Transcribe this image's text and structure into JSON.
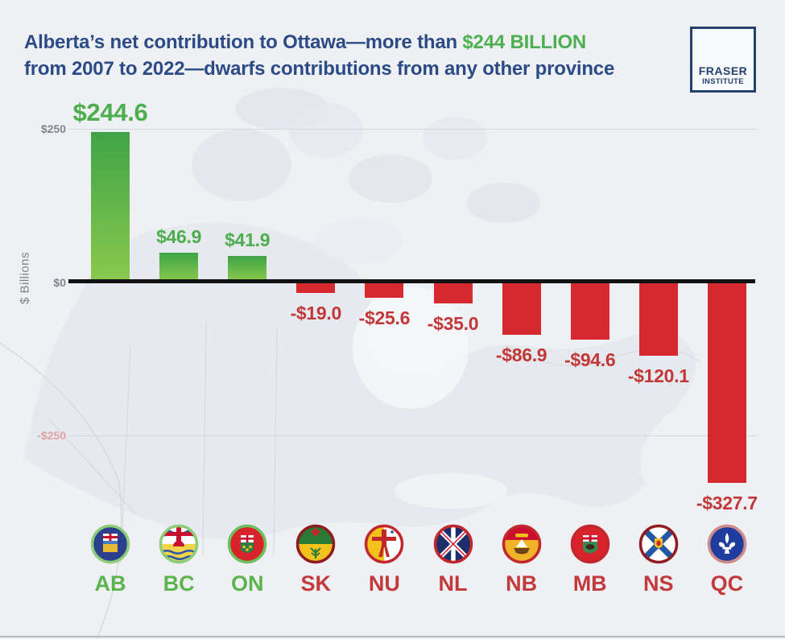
{
  "header": {
    "title": {
      "line1_prefix": "Alberta’s net contribution to Ottawa—more than ",
      "highlight": "$244 BILLION",
      "line2": "from 2007 to 2022—dwarfs contributions from any other province"
    },
    "logo": {
      "line1": "FRASER",
      "line2": "INSTITUTE"
    }
  },
  "axis": {
    "ylabel": "$ Billions",
    "tick_top": "$250",
    "tick_zero": "$0",
    "tick_bottom": "-$250"
  },
  "colors": {
    "title_text": "#2b4a86",
    "highlight_green": "#4caf50",
    "bar_green_top": "#3fa447",
    "bar_green_bottom": "#8ac94e",
    "bar_red": "#d7282f",
    "value_green": "#4cae4c",
    "value_red": "#c23737",
    "category_green": "#5ab54c",
    "category_red": "#c23a3c",
    "axis_gray": "#80858d",
    "tick_negative_pink": "#dfa3a3",
    "zero_line_black": "#121212"
  },
  "chart_data": {
    "type": "bar",
    "title": "Alberta’s net contribution to Ottawa—more than $244 BILLION from 2007 to 2022—dwarfs contributions from any other province",
    "xlabel": "",
    "ylabel": "$ Billions",
    "ylim": [
      -350,
      250
    ],
    "gridlines": [
      250,
      0,
      -250
    ],
    "grid": true,
    "legend_position": "none",
    "categories": [
      "AB",
      "BC",
      "ON",
      "SK",
      "NU",
      "NL",
      "NB",
      "MB",
      "NS",
      "QC"
    ],
    "values": [
      244.6,
      46.9,
      41.9,
      -19.0,
      -25.6,
      -35.0,
      -86.9,
      -94.6,
      -120.1,
      -327.7
    ],
    "bar_labels": [
      "$244.6",
      "$46.9",
      "$41.9",
      "-$19.0",
      "-$25.6",
      "-$35.0",
      "-$86.9",
      "-$94.6",
      "-$120.1",
      "-$327.7"
    ],
    "positive_color": "green-gradient",
    "negative_color": "red"
  }
}
